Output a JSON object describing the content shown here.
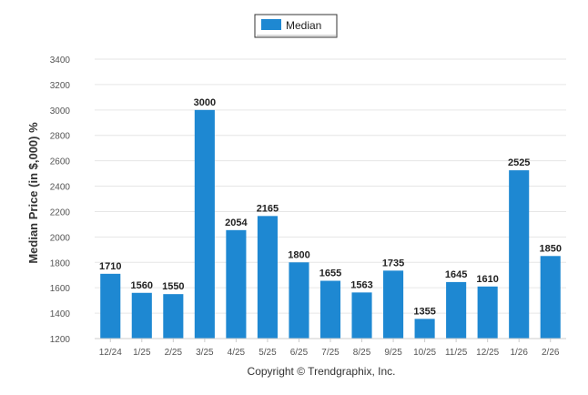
{
  "chart_data": {
    "type": "bar",
    "title": "",
    "xlabel": "",
    "ylabel": "Median Price (in $,000) %",
    "categories": [
      "12/24",
      "1/25",
      "2/25",
      "3/25",
      "4/25",
      "5/25",
      "6/25",
      "7/25",
      "8/25",
      "9/25",
      "10/25",
      "11/25",
      "12/25",
      "1/26",
      "2/26"
    ],
    "series": [
      {
        "name": "Median",
        "color": "#1e88d2",
        "values": [
          1710,
          1560,
          1550,
          3000,
          2054,
          2165,
          1800,
          1655,
          1563,
          1735,
          1355,
          1645,
          1610,
          2525,
          1850
        ],
        "data_labels": [
          "1710",
          "1560",
          "1550",
          "3000",
          "2054",
          "2165",
          "1800",
          "1655",
          "1563",
          "1735",
          "1355",
          "1645",
          "1610",
          "2525",
          "1850"
        ]
      }
    ],
    "ylim": [
      1200,
      3400
    ],
    "yticks": [
      1200,
      1400,
      1600,
      1800,
      2000,
      2200,
      2400,
      2600,
      2800,
      3000,
      3200,
      3400
    ],
    "grid": true,
    "legend_position": "top-center"
  },
  "footer": {
    "copyright": "Copyright © Trendgraphix, Inc."
  }
}
